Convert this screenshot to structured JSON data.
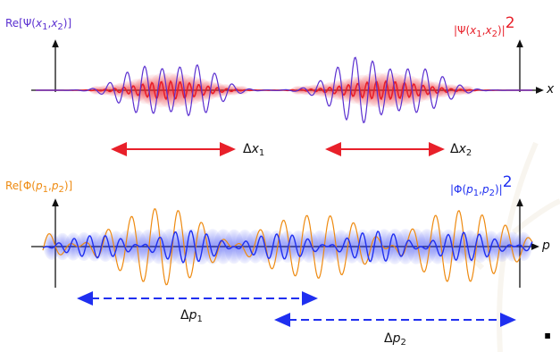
{
  "top_panel": {
    "left_label": {
      "prefix": "Re[Ψ(",
      "var1": "x",
      "sub1": "1",
      "mid": ",",
      "var2": "x",
      "sub2": "2",
      "suffix": ")]"
    },
    "right_label": {
      "prefix": "|Ψ(",
      "var1": "x",
      "sub1": "1",
      "mid": ",",
      "var2": "x",
      "sub2": "2",
      "suffix": ")|",
      "power": "2"
    },
    "axis_label": "x",
    "spread1": {
      "delta": "Δ",
      "var": "x",
      "sub": "1"
    },
    "spread2": {
      "delta": "Δ",
      "var": "x",
      "sub": "2"
    }
  },
  "bottom_panel": {
    "left_label": {
      "prefix": "Re[Φ(",
      "var1": "p",
      "sub1": "1",
      "mid": ",",
      "var2": "p",
      "sub2": "2",
      "suffix": ")]"
    },
    "right_label": {
      "prefix": "|Φ(",
      "var1": "p",
      "sub1": "1",
      "mid": ",",
      "var2": "p",
      "sub2": "2",
      "suffix": ")|",
      "power": "2"
    },
    "axis_label": "p",
    "spread1": {
      "delta": "Δ",
      "var": "p",
      "sub": "1"
    },
    "spread2": {
      "delta": "Δ",
      "var": "p",
      "sub": "2"
    }
  },
  "trailing_mark": ".",
  "colors": {
    "real_part_position": "#5a2fd0",
    "probability_position": "#e8202a",
    "real_part_momentum": "#ee8a10",
    "probability_momentum": "#1f2ff0",
    "axis": "#111111"
  }
}
